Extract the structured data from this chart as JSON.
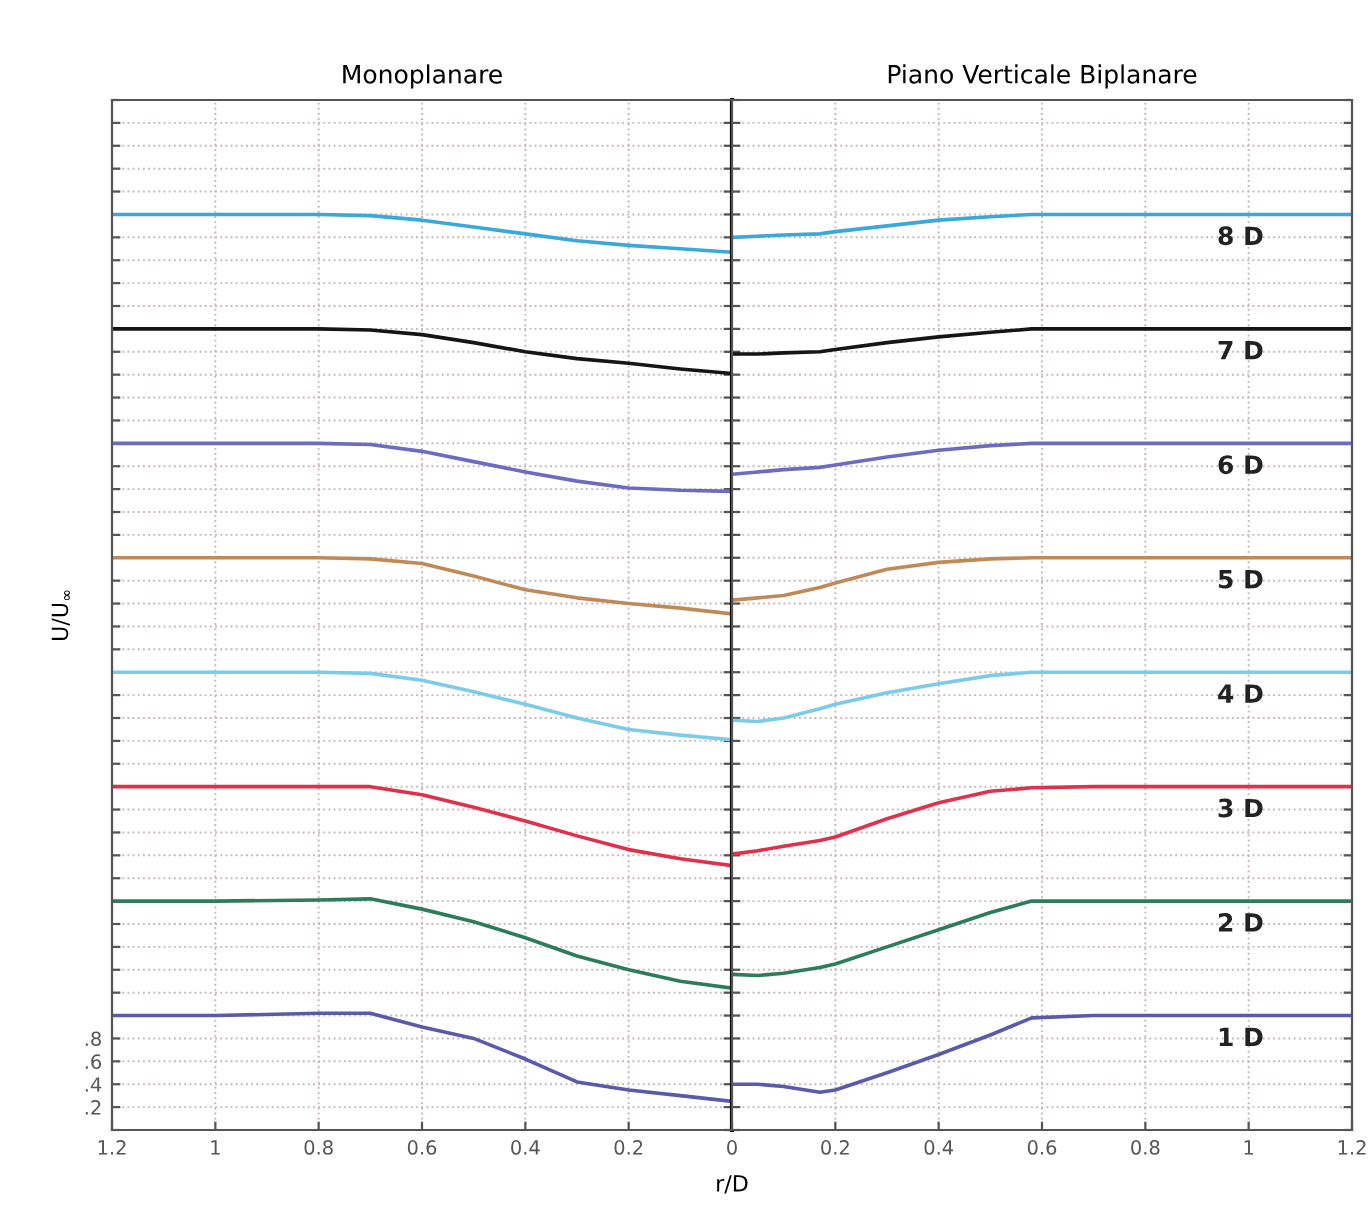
{
  "chart_data": [
    {
      "type": "line",
      "title": "Monoplanare",
      "xlabel": "r/D",
      "ylabel": "U/U$_{∞}$",
      "xlim": [
        1.2,
        0
      ],
      "xticks": [
        1.2,
        1,
        0.8,
        0.6,
        0.4,
        0.2,
        0
      ],
      "ylim": [
        0,
        9
      ],
      "grid": true,
      "marker": "none",
      "line_style": "solid",
      "yticks": [
        {
          "value": 0,
          "label": null
        },
        {
          "value": 0.2,
          "label": ".2"
        },
        {
          "value": 0.4,
          "label": ".4"
        },
        {
          "value": 0.6,
          "label": ".6"
        },
        {
          "value": 0.8,
          "label": ".8"
        },
        {
          "value": 1,
          "label": null
        },
        {
          "value": 1.2,
          "label": null
        },
        {
          "value": 1.4,
          "label": null
        },
        {
          "value": 1.6,
          "label": null
        },
        {
          "value": 1.8,
          "label": null
        },
        {
          "value": 2,
          "label": null
        },
        {
          "value": 2.2,
          "label": null
        },
        {
          "value": 2.4,
          "label": null
        },
        {
          "value": 2.6,
          "label": null
        },
        {
          "value": 2.8,
          "label": null
        },
        {
          "value": 3,
          "label": null
        },
        {
          "value": 3.2,
          "label": null
        },
        {
          "value": 3.4,
          "label": null
        },
        {
          "value": 3.6,
          "label": null
        },
        {
          "value": 3.8,
          "label": null
        },
        {
          "value": 4,
          "label": null
        },
        {
          "value": 4.2,
          "label": null
        },
        {
          "value": 4.4,
          "label": null
        },
        {
          "value": 4.6,
          "label": null
        },
        {
          "value": 4.8,
          "label": null
        },
        {
          "value": 5,
          "label": null
        },
        {
          "value": 5.2,
          "label": null
        },
        {
          "value": 5.4,
          "label": null
        },
        {
          "value": 5.6,
          "label": null
        },
        {
          "value": 5.8,
          "label": null
        },
        {
          "value": 6,
          "label": null
        },
        {
          "value": 6.2,
          "label": null
        },
        {
          "value": 6.4,
          "label": null
        },
        {
          "value": 6.6,
          "label": null
        },
        {
          "value": 6.8,
          "label": null
        },
        {
          "value": 7,
          "label": null
        },
        {
          "value": 7.2,
          "label": null
        },
        {
          "value": 7.4,
          "label": null
        },
        {
          "value": 7.6,
          "label": null
        },
        {
          "value": 7.8,
          "label": null
        },
        {
          "value": 8,
          "label": null
        },
        {
          "value": 8.2,
          "label": null
        },
        {
          "value": 8.4,
          "label": null
        },
        {
          "value": 8.6,
          "label": null
        },
        {
          "value": 8.8,
          "label": null
        },
        {
          "value": 9,
          "label": null
        }
      ],
      "x": [
        1.2,
        1.0,
        0.8,
        0.7,
        0.6,
        0.5,
        0.4,
        0.3,
        0.2,
        0.1,
        0
      ],
      "series": [
        {
          "color": "#5a5aaa",
          "values": [
            1.0,
            1.0,
            1.02,
            1.02,
            0.9,
            0.8,
            0.62,
            0.42,
            0.35,
            0.3,
            0.25
          ]
        },
        {
          "color": "#2e7d5a",
          "values": [
            2.0,
            2.0,
            2.01,
            2.02,
            1.93,
            1.82,
            1.68,
            1.52,
            1.4,
            1.3,
            1.24
          ]
        },
        {
          "color": "#e0304a",
          "values": [
            3.0,
            3.0,
            3.0,
            3.0,
            2.93,
            2.82,
            2.7,
            2.57,
            2.45,
            2.37,
            2.31
          ]
        },
        {
          "color": "#7ccbe8",
          "values": [
            4.0,
            4.0,
            4.0,
            3.99,
            3.93,
            3.83,
            3.72,
            3.6,
            3.5,
            3.45,
            3.41
          ]
        },
        {
          "color": "#c08a58",
          "values": [
            5.0,
            5.0,
            5.0,
            4.99,
            4.95,
            4.84,
            4.72,
            4.65,
            4.6,
            4.56,
            4.51
          ]
        },
        {
          "color": "#6b6bc0",
          "values": [
            6.0,
            6.0,
            6.0,
            5.99,
            5.93,
            5.84,
            5.75,
            5.67,
            5.61,
            5.59,
            5.58
          ]
        },
        {
          "color": "#151515",
          "values": [
            7.0,
            7.0,
            7.0,
            6.99,
            6.95,
            6.88,
            6.8,
            6.74,
            6.7,
            6.65,
            6.61
          ]
        },
        {
          "color": "#3aa8d8",
          "values": [
            8.0,
            8.0,
            8.0,
            7.99,
            7.95,
            7.89,
            7.83,
            7.77,
            7.73,
            7.7,
            7.67
          ]
        }
      ]
    },
    {
      "type": "line",
      "title": "Piano Verticale Biplanare",
      "xlim": [
        0,
        1.2
      ],
      "xticks": [
        {
          "value": 0,
          "label": null
        },
        0.2,
        0.4,
        0.6,
        0.8,
        1,
        1.2
      ],
      "ylim": [
        0,
        9
      ],
      "tick_labels": "x",
      "grid": true,
      "marker": "none",
      "line_style": "solid",
      "yticks": [
        0,
        0.2,
        0.4,
        0.6,
        0.8,
        1,
        1.2,
        1.4,
        1.6,
        1.8,
        2,
        2.2,
        2.4,
        2.6,
        2.8,
        3,
        3.2,
        3.4,
        3.6,
        3.8,
        4,
        4.2,
        4.4,
        4.6,
        4.8,
        5,
        5.2,
        5.4,
        5.6,
        5.8,
        6,
        6.2,
        6.4,
        6.6,
        6.8,
        7,
        7.2,
        7.4,
        7.6,
        7.8,
        8,
        8.2,
        8.4,
        8.6,
        8.8,
        9
      ],
      "x": [
        0,
        0.05,
        0.1,
        0.17,
        0.2,
        0.3,
        0.4,
        0.5,
        0.58,
        0.7,
        0.8,
        1.0,
        1.2
      ],
      "series": [
        {
          "name": "1 D",
          "color": "#5a5aaa",
          "values": [
            0.4,
            0.4,
            0.38,
            0.33,
            0.35,
            0.5,
            0.66,
            0.83,
            0.98,
            1.0,
            1.0,
            1.0,
            1.0
          ]
        },
        {
          "name": "2 D",
          "color": "#2e7d5a",
          "values": [
            1.36,
            1.35,
            1.37,
            1.42,
            1.45,
            1.6,
            1.75,
            1.9,
            2.0,
            2.0,
            2.0,
            2.0,
            2.0
          ]
        },
        {
          "name": "3 D",
          "color": "#e0304a",
          "values": [
            2.41,
            2.44,
            2.48,
            2.53,
            2.56,
            2.72,
            2.86,
            2.96,
            2.99,
            3.0,
            3.0,
            3.0,
            3.0
          ]
        },
        {
          "name": "4 D",
          "color": "#7ccbe8",
          "values": [
            3.58,
            3.57,
            3.6,
            3.68,
            3.72,
            3.82,
            3.9,
            3.97,
            4.0,
            4.0,
            4.0,
            4.0,
            4.0
          ]
        },
        {
          "name": "5 D",
          "color": "#c08a58",
          "values": [
            4.63,
            4.65,
            4.67,
            4.74,
            4.78,
            4.9,
            4.96,
            4.99,
            5.0,
            5.0,
            5.0,
            5.0,
            5.0
          ]
        },
        {
          "name": "6 D",
          "color": "#6b6bc0",
          "values": [
            5.73,
            5.75,
            5.77,
            5.79,
            5.81,
            5.88,
            5.94,
            5.98,
            6.0,
            6.0,
            6.0,
            6.0,
            6.0
          ]
        },
        {
          "name": "7 D",
          "color": "#151515",
          "values": [
            6.78,
            6.78,
            6.79,
            6.8,
            6.82,
            6.88,
            6.93,
            6.97,
            7.0,
            7.0,
            7.0,
            7.0,
            7.0
          ]
        },
        {
          "name": "8 D",
          "color": "#3aa8d8",
          "values": [
            7.8,
            7.81,
            7.82,
            7.83,
            7.85,
            7.9,
            7.95,
            7.98,
            8.0,
            8.0,
            8.0,
            8.0,
            8.0
          ]
        }
      ]
    }
  ]
}
